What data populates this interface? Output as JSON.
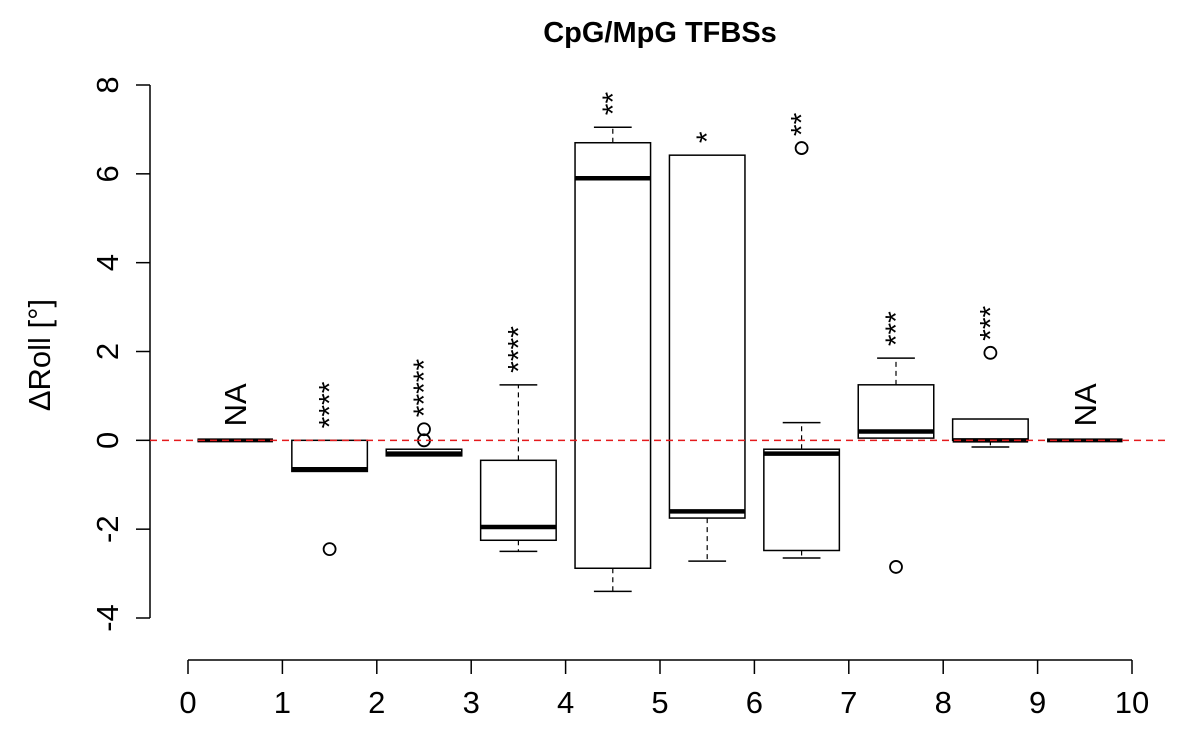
{
  "chart_data": {
    "type": "boxplot",
    "title": "CpG/MpG TFBSs",
    "xlabel": "",
    "ylabel": "ΔRoll [°]",
    "xlim": [
      0,
      10
    ],
    "ylim": [
      -4,
      8
    ],
    "xticks": [
      "0",
      "1",
      "2",
      "3",
      "4",
      "5",
      "6",
      "7",
      "8",
      "9",
      "10"
    ],
    "yticks": [
      "-4",
      "-2",
      "0",
      "2",
      "4",
      "6",
      "8"
    ],
    "reference_line": {
      "y": 0,
      "color": "#e41a1c",
      "style": "dashed"
    },
    "boxes": [
      {
        "bin": "0-1",
        "na": true,
        "label": "NA",
        "q1": 0,
        "median": 0,
        "q3": 0,
        "whisker_low": 0,
        "whisker_high": 0,
        "outliers": []
      },
      {
        "bin": "1-2",
        "na": false,
        "stars": "****",
        "q1": -0.7,
        "median": -0.65,
        "q3": 0,
        "whisker_low": -0.7,
        "whisker_high": 0,
        "outliers": [
          -2.45
        ]
      },
      {
        "bin": "2-3",
        "na": false,
        "stars": "*****",
        "q1": -0.35,
        "median": -0.3,
        "q3": -0.2,
        "whisker_low": -0.35,
        "whisker_high": -0.2,
        "outliers": [
          0.25,
          0.0
        ]
      },
      {
        "bin": "3-4",
        "na": false,
        "stars": "****",
        "q1": -2.25,
        "median": -1.95,
        "q3": -0.45,
        "whisker_low": -2.5,
        "whisker_high": 1.25,
        "outliers": []
      },
      {
        "bin": "4-5",
        "na": false,
        "stars": "**",
        "q1": -2.88,
        "median": 5.9,
        "q3": 6.7,
        "whisker_low": -3.4,
        "whisker_high": 7.05,
        "outliers": []
      },
      {
        "bin": "5-6",
        "na": false,
        "stars": "*",
        "q1": -1.75,
        "median": -1.6,
        "q3": 6.42,
        "whisker_low": -2.72,
        "whisker_high": 6.42,
        "outliers": []
      },
      {
        "bin": "6-7",
        "na": false,
        "stars": "**",
        "q1": -2.48,
        "median": -0.3,
        "q3": -0.2,
        "whisker_low": -2.65,
        "whisker_high": 0.4,
        "outliers": [
          6.58
        ]
      },
      {
        "bin": "7-8",
        "na": false,
        "stars": "***",
        "q1": 0.05,
        "median": 0.2,
        "q3": 1.25,
        "whisker_low": 0.05,
        "whisker_high": 1.85,
        "outliers": [
          -2.85
        ]
      },
      {
        "bin": "8-9",
        "na": false,
        "stars": "***",
        "q1": 0,
        "median": 0,
        "q3": 0.48,
        "whisker_low": -0.15,
        "whisker_high": 0.48,
        "outliers": [
          1.97
        ]
      },
      {
        "bin": "9-10",
        "na": true,
        "label": "NA",
        "q1": 0,
        "median": 0,
        "q3": 0,
        "whisker_low": 0,
        "whisker_high": 0,
        "outliers": []
      }
    ]
  }
}
